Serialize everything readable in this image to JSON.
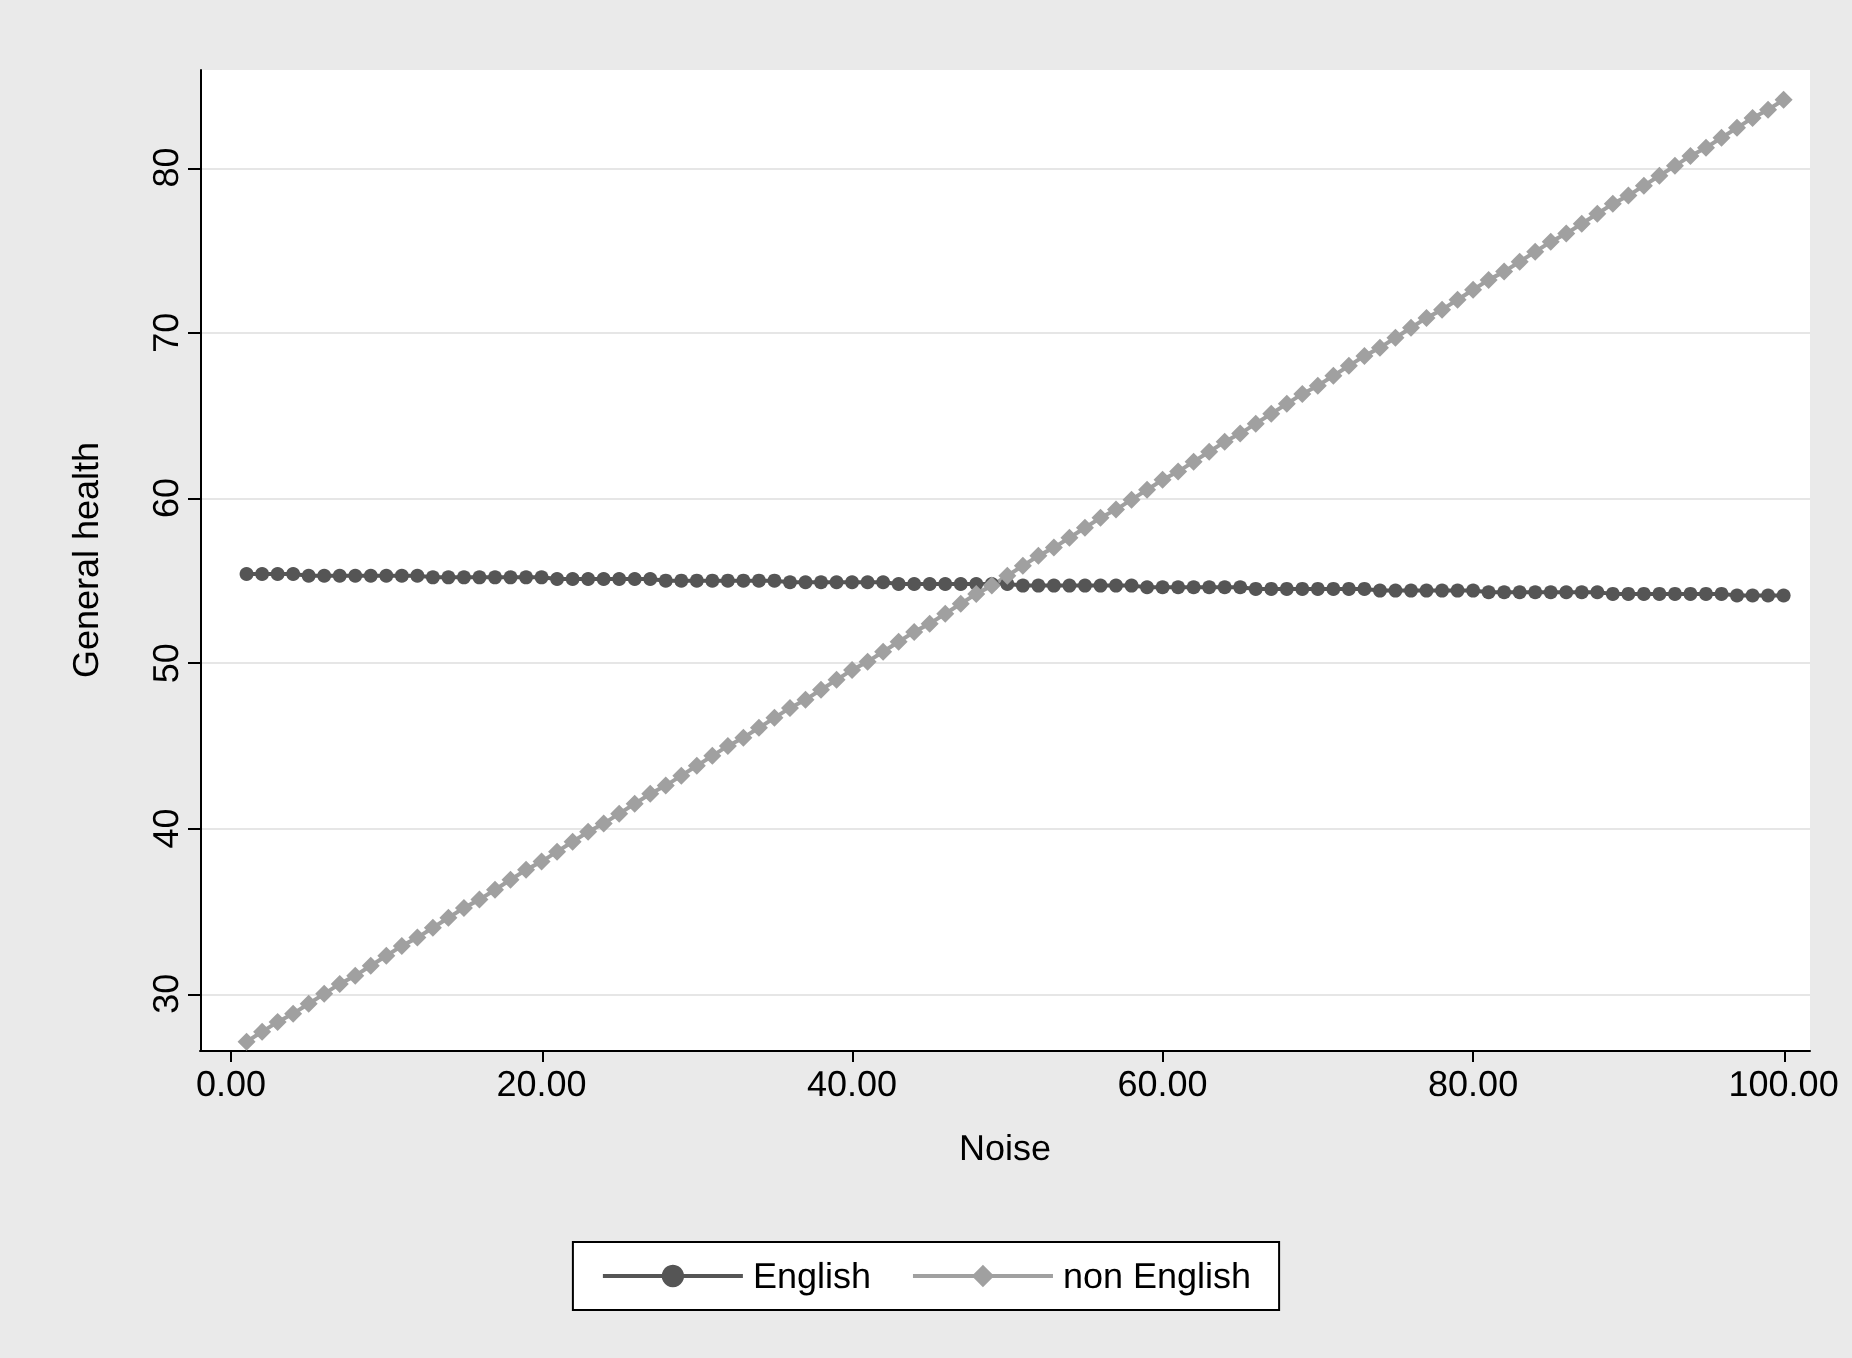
{
  "chart_data": {
    "type": "line",
    "xlabel": "Noise",
    "ylabel": "General health",
    "x": [
      1,
      2,
      3,
      4,
      5,
      6,
      7,
      8,
      9,
      10,
      11,
      12,
      13,
      14,
      15,
      16,
      17,
      18,
      19,
      20,
      21,
      22,
      23,
      24,
      25,
      26,
      27,
      28,
      29,
      30,
      31,
      32,
      33,
      34,
      35,
      36,
      37,
      38,
      39,
      40,
      41,
      42,
      43,
      44,
      45,
      46,
      47,
      48,
      49,
      50,
      51,
      52,
      53,
      54,
      55,
      56,
      57,
      58,
      59,
      60,
      61,
      62,
      63,
      64,
      65,
      66,
      67,
      68,
      69,
      70,
      71,
      72,
      73,
      74,
      75,
      76,
      77,
      78,
      79,
      80,
      81,
      82,
      83,
      84,
      85,
      86,
      87,
      88,
      89,
      90,
      91,
      92,
      93,
      94,
      95,
      96,
      97,
      98,
      99,
      100
    ],
    "series": [
      {
        "name": "English",
        "color": "#555555",
        "values": [
          55.4,
          55.4,
          55.4,
          55.4,
          55.3,
          55.3,
          55.3,
          55.3,
          55.3,
          55.3,
          55.3,
          55.3,
          55.2,
          55.2,
          55.2,
          55.2,
          55.2,
          55.2,
          55.2,
          55.2,
          55.1,
          55.1,
          55.1,
          55.1,
          55.1,
          55.1,
          55.1,
          55.0,
          55.0,
          55.0,
          55.0,
          55.0,
          55.0,
          55.0,
          55.0,
          54.9,
          54.9,
          54.9,
          54.9,
          54.9,
          54.9,
          54.9,
          54.8,
          54.8,
          54.8,
          54.8,
          54.8,
          54.8,
          54.8,
          54.8,
          54.7,
          54.7,
          54.7,
          54.7,
          54.7,
          54.7,
          54.7,
          54.7,
          54.6,
          54.6,
          54.6,
          54.6,
          54.6,
          54.6,
          54.6,
          54.5,
          54.5,
          54.5,
          54.5,
          54.5,
          54.5,
          54.5,
          54.5,
          54.4,
          54.4,
          54.4,
          54.4,
          54.4,
          54.4,
          54.4,
          54.3,
          54.3,
          54.3,
          54.3,
          54.3,
          54.3,
          54.3,
          54.3,
          54.2,
          54.2,
          54.2,
          54.2,
          54.2,
          54.2,
          54.2,
          54.2,
          54.1,
          54.1,
          54.1,
          54.1
        ]
      },
      {
        "name": "non English",
        "color": "#a0a0a0",
        "marker": "diamond",
        "values": [
          27.1,
          27.7,
          28.3,
          28.8,
          29.4,
          30.0,
          30.6,
          31.1,
          31.7,
          32.3,
          32.9,
          33.4,
          34.0,
          34.6,
          35.2,
          35.7,
          36.3,
          36.9,
          37.5,
          38.0,
          38.6,
          39.2,
          39.8,
          40.3,
          40.9,
          41.5,
          42.1,
          42.6,
          43.2,
          43.8,
          44.4,
          45.0,
          45.5,
          46.1,
          46.7,
          47.3,
          47.8,
          48.4,
          49.0,
          49.6,
          50.1,
          50.7,
          51.3,
          51.9,
          52.4,
          53.0,
          53.6,
          54.2,
          54.7,
          55.3,
          55.9,
          56.5,
          57.0,
          57.6,
          58.2,
          58.8,
          59.3,
          59.9,
          60.5,
          61.1,
          61.6,
          62.2,
          62.8,
          63.4,
          63.9,
          64.5,
          65.1,
          65.7,
          66.3,
          66.8,
          67.4,
          68.0,
          68.6,
          69.1,
          69.7,
          70.3,
          70.9,
          71.4,
          72.0,
          72.6,
          73.2,
          73.7,
          74.3,
          74.9,
          75.5,
          76.0,
          76.6,
          77.2,
          77.8,
          78.3,
          78.9,
          79.5,
          80.1,
          80.7,
          81.2,
          81.8,
          82.4,
          83.0,
          83.5,
          84.1
        ]
      }
    ],
    "xlim": [
      -2,
      101.7
    ],
    "xticks": [
      {
        "value": 0,
        "label": "0.00"
      },
      {
        "value": 20,
        "label": "20.00"
      },
      {
        "value": 40,
        "label": "40.00"
      },
      {
        "value": 60,
        "label": "60.00"
      },
      {
        "value": 80,
        "label": "80.00"
      },
      {
        "value": 100,
        "label": "100.00"
      }
    ],
    "ylim": [
      26.6,
      85.9
    ],
    "yticks": [
      30,
      40,
      50,
      60,
      70,
      80
    ],
    "grid": "y",
    "legend": "bottom",
    "line_style": "solid",
    "marker": "circle"
  }
}
